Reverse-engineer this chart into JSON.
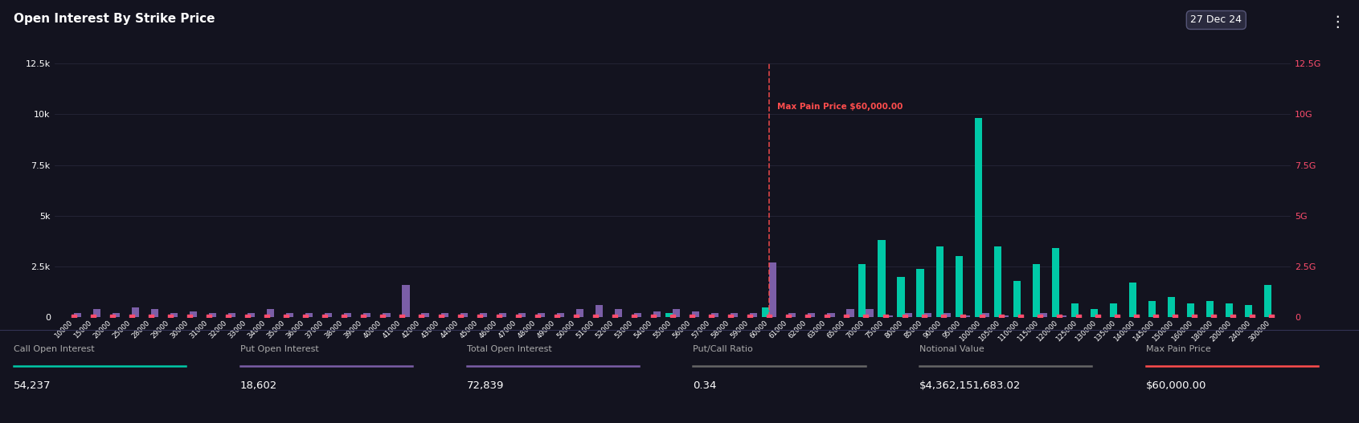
{
  "title": "Open Interest By Strike Price",
  "date_label": "27 Dec 24",
  "bg_color": "#13131f",
  "text_color": "#ffffff",
  "grid_color": "#2a2a3e",
  "calls_color": "#00c9a7",
  "puts_color": "#7b5ea7",
  "intrinsic_color": "#ff4d6d",
  "max_pain_color": "#ff4d4d",
  "max_pain_price": 60000,
  "strikes": [
    10000,
    15000,
    20000,
    25000,
    28000,
    29000,
    30000,
    31000,
    32000,
    33000,
    34000,
    35000,
    36000,
    37000,
    38000,
    39000,
    40000,
    41000,
    42000,
    43000,
    44000,
    45000,
    46000,
    47000,
    48000,
    49000,
    50000,
    51000,
    52000,
    53000,
    54000,
    55000,
    56000,
    57000,
    58000,
    59000,
    60000,
    61000,
    62000,
    63000,
    65000,
    70000,
    75000,
    80000,
    85000,
    90000,
    95000,
    100000,
    105000,
    110000,
    115000,
    120000,
    125000,
    130000,
    135000,
    140000,
    145000,
    150000,
    160000,
    180000,
    200000,
    240000,
    300000
  ],
  "calls": [
    0,
    0,
    0,
    0,
    0,
    0,
    0,
    0,
    0,
    0,
    0,
    0,
    0,
    0,
    0,
    0,
    0,
    0,
    0,
    0,
    0,
    0,
    0,
    0,
    0,
    0,
    0,
    0,
    0,
    0,
    0,
    200,
    0,
    0,
    0,
    0,
    500,
    0,
    0,
    0,
    0,
    2600,
    3800,
    2000,
    2400,
    3500,
    3000,
    9800,
    3500,
    1800,
    2600,
    3400,
    700,
    400,
    700,
    1700,
    800,
    1000,
    700,
    800,
    700,
    600,
    1600
  ],
  "puts": [
    200,
    400,
    200,
    500,
    400,
    200,
    300,
    200,
    200,
    200,
    400,
    200,
    200,
    200,
    200,
    200,
    200,
    1600,
    200,
    200,
    200,
    200,
    200,
    200,
    200,
    200,
    400,
    600,
    400,
    200,
    300,
    400,
    300,
    200,
    200,
    200,
    2700,
    200,
    200,
    200,
    400,
    400,
    100,
    200,
    200,
    200,
    100,
    200,
    100,
    0,
    200,
    100,
    0,
    0,
    0,
    0,
    0,
    0,
    0,
    0,
    0,
    0,
    0
  ],
  "intrinsic_values": [
    400,
    500,
    400,
    400,
    400,
    400,
    350,
    350,
    350,
    350,
    350,
    350,
    350,
    350,
    350,
    350,
    350,
    350,
    350,
    350,
    350,
    350,
    300,
    300,
    300,
    300,
    300,
    300,
    300,
    300,
    300,
    300,
    300,
    300,
    300,
    300,
    300,
    300,
    300,
    300,
    350,
    500,
    600,
    700,
    900,
    1100,
    1200,
    1300,
    1500,
    1700,
    1900,
    2100,
    2300,
    2500,
    2800,
    3000,
    3200,
    3500,
    4200,
    5000,
    6200,
    7800,
    10500
  ],
  "ylim_left": [
    0,
    12500
  ],
  "ytick_labels_left": [
    "0",
    "2.5k",
    "5k",
    "7.5k",
    "10k",
    "12.5k"
  ],
  "ytick_vals_left": [
    0,
    2500,
    5000,
    7500,
    10000,
    12500
  ],
  "ylim_right": [
    0,
    12500000000
  ],
  "ytick_vals_right": [
    0,
    2500000000,
    5000000000,
    7500000000,
    10000000000,
    12500000000
  ],
  "ytick_labels_right": [
    "0",
    "2.5G",
    "5G",
    "7.5G",
    "10G",
    "12.5G"
  ],
  "footer_items": [
    {
      "label": "Call Open Interest",
      "value": "54,237",
      "line_color": "#00c9a7"
    },
    {
      "label": "Put Open Interest",
      "value": "18,602",
      "line_color": "#7b5ea7"
    },
    {
      "label": "Total Open Interest",
      "value": "72,839",
      "line_color": "#7b5ea7"
    },
    {
      "label": "Put/Call Ratio",
      "value": "0.34",
      "line_color": "#666666"
    },
    {
      "label": "Notional Value",
      "value": "$4,362,151,683.02",
      "line_color": "#666666"
    },
    {
      "label": "Max Pain Price",
      "value": "$60,000.00",
      "line_color": "#ff4d4d"
    }
  ]
}
